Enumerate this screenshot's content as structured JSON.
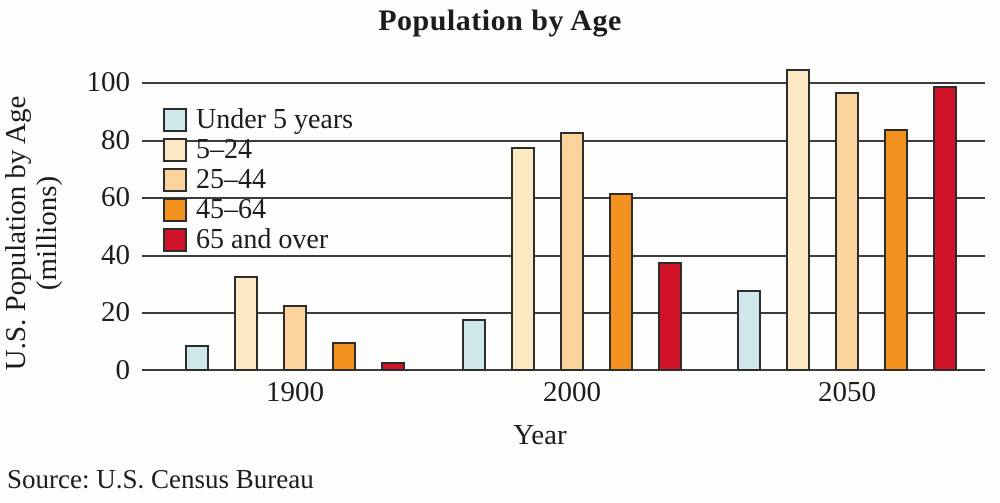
{
  "title": "Population by Age",
  "y_axis": {
    "label_line1": "U.S. Population by Age",
    "label_line2": "(millions)"
  },
  "x_axis": {
    "label": "Year"
  },
  "source": "Source: U.S. Census Bureau",
  "colors": {
    "under_5": "#cfe8ec",
    "age_5_24": "#fce9c3",
    "age_25_44": "#fbd39c",
    "age_45_64": "#f3921f",
    "age_65_over": "#d01329",
    "gridline": "#3c3c3c",
    "bar_outline": "#2d2d2d",
    "text": "#1c1c1c",
    "background": "#fdfdfc"
  },
  "chart_data": {
    "type": "bar",
    "title": "Population by Age",
    "categories": [
      "1900",
      "2000",
      "2050"
    ],
    "series": [
      {
        "name": "Under 5 years",
        "color": "#cfe8ec",
        "values": [
          9,
          18,
          28
        ]
      },
      {
        "name": "5–24",
        "color": "#fce9c3",
        "values": [
          33,
          78,
          105
        ]
      },
      {
        "name": "25–44",
        "color": "#fbd39c",
        "values": [
          23,
          83,
          97
        ]
      },
      {
        "name": "45–64",
        "color": "#f3921f",
        "values": [
          10,
          62,
          84
        ]
      },
      {
        "name": "65 and over",
        "color": "#d01329",
        "values": [
          3,
          38,
          99
        ]
      }
    ],
    "xlabel": "Year",
    "ylabel": "U.S. Population by Age (millions)",
    "ylim": [
      0,
      100
    ],
    "yticks": [
      0,
      20,
      40,
      60,
      80,
      100
    ],
    "grid": "horizontal",
    "legend_position": "top-left-inside",
    "source": "Source: U.S. Census Bureau"
  }
}
